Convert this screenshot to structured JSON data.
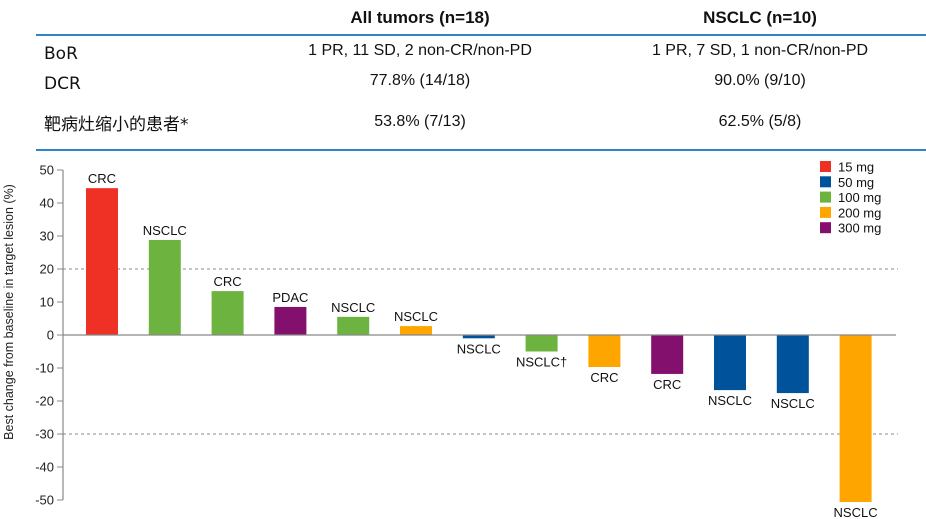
{
  "table": {
    "columns": [
      "All tumors (n=18)",
      "NSCLC (n=10)"
    ],
    "rows": [
      {
        "label": "BoR",
        "values": [
          "1 PR, 11 SD, 2 non-CR/non-PD",
          "1 PR, 7 SD, 1 non-CR/non-PD"
        ]
      },
      {
        "label": "DCR",
        "values": [
          "77.8% (14/18)",
          "90.0% (9/10)"
        ]
      },
      {
        "label": "靶病灶缩小的患者*",
        "values": [
          "53.8% (7/13)",
          "62.5% (5/8)"
        ]
      }
    ],
    "rule_color": "#2e86c8"
  },
  "chart_data": {
    "type": "bar",
    "ylabel": "Best change from baseline in target lesion (%)",
    "ylim": [
      -50,
      50
    ],
    "yticks": [
      "50",
      "40",
      "30",
      "20",
      "10",
      "0",
      "-10",
      "-20",
      "-30",
      "-40",
      "-50"
    ],
    "reference_lines": [
      20,
      -30
    ],
    "legend_position": "top-right",
    "legend": [
      {
        "name": "15 mg",
        "color": "#ee3124"
      },
      {
        "name": "50 mg",
        "color": "#00529b"
      },
      {
        "name": "100 mg",
        "color": "#6db33f"
      },
      {
        "name": "200 mg",
        "color": "#ffa500"
      },
      {
        "name": "300 mg",
        "color": "#84106e"
      }
    ],
    "bars": [
      {
        "label": "CRC",
        "value": 44.5,
        "dose": "15 mg"
      },
      {
        "label": "NSCLC",
        "value": 28.8,
        "dose": "100 mg"
      },
      {
        "label": "CRC",
        "value": 13.3,
        "dose": "100 mg"
      },
      {
        "label": "PDAC",
        "value": 8.5,
        "dose": "300 mg"
      },
      {
        "label": "NSCLC",
        "value": 5.5,
        "dose": "100 mg"
      },
      {
        "label": "NSCLC",
        "value": 2.7,
        "dose": "200 mg"
      },
      {
        "label": "NSCLC",
        "value": -1.0,
        "dose": "50 mg"
      },
      {
        "label": "NSCLC†",
        "value": -5.0,
        "dose": "100 mg"
      },
      {
        "label": "CRC",
        "value": -9.7,
        "dose": "200 mg"
      },
      {
        "label": "CRC",
        "value": -11.8,
        "dose": "300 mg"
      },
      {
        "label": "NSCLC",
        "value": -16.7,
        "dose": "50 mg"
      },
      {
        "label": "NSCLC",
        "value": -17.6,
        "dose": "50 mg"
      },
      {
        "label": "NSCLC",
        "value": -50.6,
        "dose": "200 mg"
      }
    ]
  }
}
